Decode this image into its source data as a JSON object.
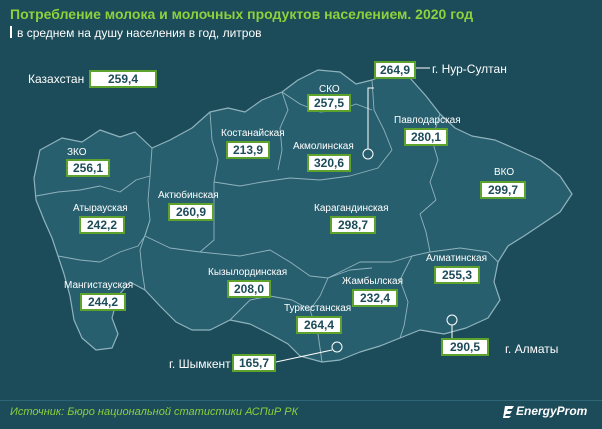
{
  "header": {
    "title": "Потребление молока и молочных продуктов населением. 2020 год",
    "subtitle": "в среднем на душу населения в год, литров"
  },
  "colors": {
    "background": "#1c4b59",
    "region_fill": "#285f6e",
    "border": "#8fb3bd",
    "accent": "#8ed13c",
    "box_border": "#5da22c"
  },
  "national": {
    "label": "Казахстан",
    "value": "259,4"
  },
  "regions": [
    {
      "id": "zko",
      "label": "ЗКО",
      "value": "256,1"
    },
    {
      "id": "atyrau",
      "label": "Атырауская",
      "value": "242,2"
    },
    {
      "id": "mangistau",
      "label": "Мангистауская",
      "value": "244,2"
    },
    {
      "id": "aktobe",
      "label": "Актюбинская",
      "value": "260,9"
    },
    {
      "id": "kostanay",
      "label": "Костанайская",
      "value": "213,9"
    },
    {
      "id": "sko",
      "label": "СКО",
      "value": "257,5"
    },
    {
      "id": "akmola",
      "label": "Акмолинская",
      "value": "320,6"
    },
    {
      "id": "pavlodar",
      "label": "Павлодарская",
      "value": "280,1"
    },
    {
      "id": "vko",
      "label": "ВКО",
      "value": "299,7"
    },
    {
      "id": "karaganda",
      "label": "Карагандинская",
      "value": "298,7"
    },
    {
      "id": "kyzylorda",
      "label": "Кызылординская",
      "value": "208,0"
    },
    {
      "id": "zhambyl",
      "label": "Жамбылская",
      "value": "232,4"
    },
    {
      "id": "almaty_reg",
      "label": "Алматинская",
      "value": "255,3"
    },
    {
      "id": "turkestan",
      "label": "Туркестанская",
      "value": "264,4"
    }
  ],
  "cities": [
    {
      "id": "nur_sultan",
      "label": "г. Нур-Султан",
      "value": "264,9"
    },
    {
      "id": "almaty",
      "label": "г. Алматы",
      "value": "290,5"
    },
    {
      "id": "shymkent",
      "label": "г. Шымкент",
      "value": "165,7"
    }
  ],
  "footer": {
    "source": "Источник: Бюро национальной статистики АСПиР РК",
    "brand": "EnergyProm",
    "brand_icon": "energyprom-logo-icon"
  }
}
